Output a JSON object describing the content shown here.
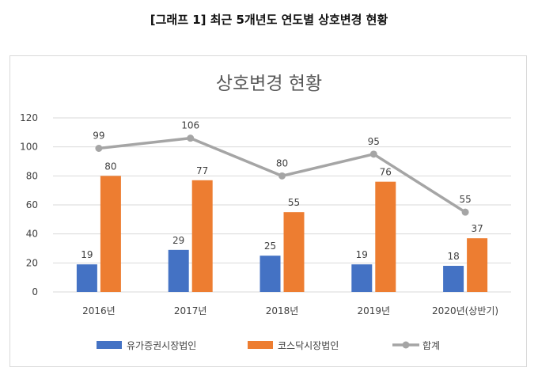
{
  "caption": "[그래프 1] 최근 5개년도 연도별 상호변경 현황",
  "chart_data": {
    "type": "bar",
    "title": "상호변경 현황",
    "categories": [
      "2016년",
      "2017년",
      "2018년",
      "2019년",
      "2020년(상반기)"
    ],
    "series": [
      {
        "name": "유가증권시장법인",
        "type": "bar",
        "color": "#4472C4",
        "values": [
          19,
          29,
          25,
          19,
          18
        ]
      },
      {
        "name": "코스닥시장법인",
        "type": "bar",
        "color": "#ED7D31",
        "values": [
          80,
          77,
          55,
          76,
          37
        ]
      },
      {
        "name": "합계",
        "type": "line",
        "color": "#A5A5A5",
        "values": [
          99,
          106,
          80,
          95,
          55
        ]
      }
    ],
    "ylim": [
      0,
      120
    ],
    "yticks": [
      0,
      20,
      40,
      60,
      80,
      100,
      120
    ],
    "grid": true,
    "legend": "bottom"
  }
}
